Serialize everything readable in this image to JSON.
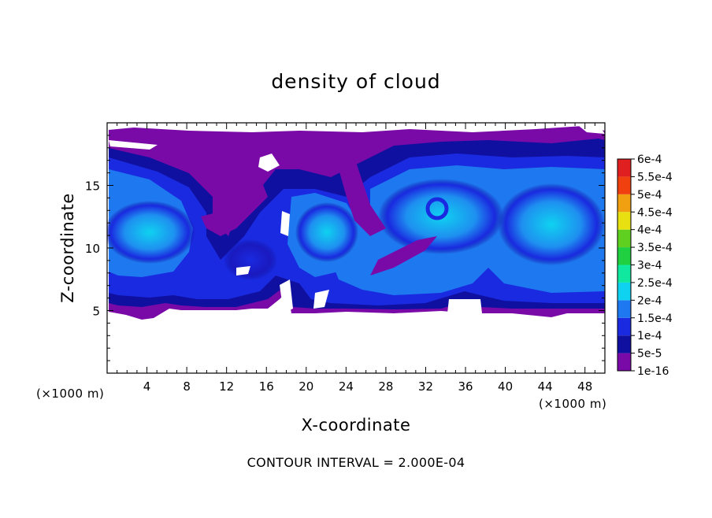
{
  "chart_data": {
    "type": "heatmap",
    "title": "density of cloud",
    "xlabel": "X-coordinate",
    "ylabel": "Z-coordinate",
    "x_unit": "(×1000 m)",
    "y_unit": "(×1000 m)",
    "xlim": [
      0,
      50
    ],
    "ylim": [
      0,
      20
    ],
    "x_ticks": [
      4,
      8,
      12,
      16,
      20,
      24,
      28,
      32,
      36,
      40,
      44,
      48
    ],
    "y_ticks": [
      5,
      10,
      15
    ],
    "footnote": "CONTOUR INTERVAL = 2.000E-04",
    "colorbar": {
      "labels": [
        "1e-16",
        "5e-5",
        "1e-4",
        "1.5e-4",
        "2e-4",
        "2.5e-4",
        "3e-4",
        "3.5e-4",
        "4e-4",
        "4.5e-4",
        "5e-4",
        "5.5e-4",
        "6e-4"
      ],
      "colors": [
        "#7a0aa8",
        "#1010a0",
        "#1a2ae0",
        "#1e78f0",
        "#0fd2f0",
        "#10e8a0",
        "#20d040",
        "#60d020",
        "#e8e010",
        "#f0a010",
        "#f04010",
        "#e02020",
        "#f08080"
      ]
    },
    "cloud_region": {
      "x_range": [
        0,
        50
      ],
      "z_range": [
        4.8,
        19.5
      ],
      "dominant_levels": [
        "1e-16",
        "5e-5",
        "1e-4",
        "1.5e-4",
        "2e-4"
      ]
    }
  }
}
